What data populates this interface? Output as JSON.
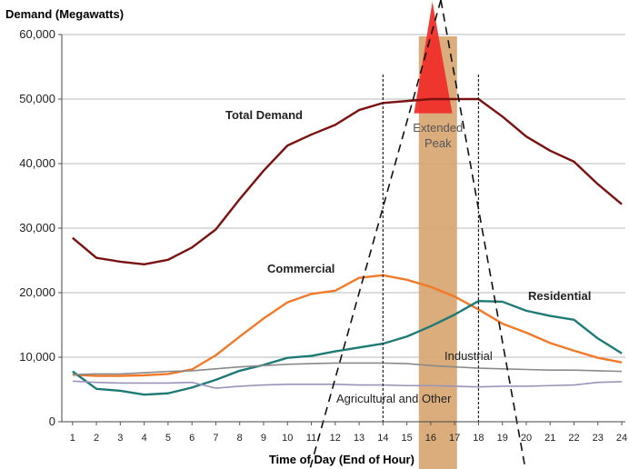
{
  "chart_data": {
    "type": "line",
    "ylabel": "Demand (Megawatts)",
    "xlabel": "Time of Day (End of Hour)",
    "ylim": [
      0,
      60000
    ],
    "yticks": [
      0,
      10000,
      20000,
      30000,
      40000,
      50000,
      60000
    ],
    "ytick_labels": [
      "0",
      "10,000",
      "20,000",
      "30,000",
      "40,000",
      "50,000",
      "60,000"
    ],
    "x": [
      1,
      2,
      3,
      4,
      5,
      6,
      7,
      8,
      9,
      10,
      11,
      12,
      13,
      14,
      15,
      16,
      17,
      18,
      19,
      20,
      21,
      22,
      23,
      24
    ],
    "grid": "horizontal",
    "series": [
      {
        "name": "Total Demand",
        "color": "#7a1212",
        "label_bold": true,
        "values": [
          28500,
          25400,
          24800,
          24400,
          25100,
          27000,
          29800,
          34500,
          38900,
          42800,
          44500,
          46000,
          48300,
          49400,
          49700,
          50000,
          50000,
          50000,
          47300,
          44200,
          42000,
          40300,
          36800,
          33700
        ]
      },
      {
        "name": "Commercial",
        "color": "#f07a2a",
        "label_bold": true,
        "values": [
          7300,
          7100,
          7100,
          7200,
          7400,
          8100,
          10300,
          13200,
          16000,
          18500,
          19800,
          20300,
          22300,
          22700,
          22000,
          20900,
          19400,
          17400,
          15200,
          13800,
          12200,
          11000,
          9900,
          9200
        ]
      },
      {
        "name": "Residential",
        "color": "#1f7a76",
        "label_bold": true,
        "values": [
          7800,
          5100,
          4800,
          4200,
          4400,
          5300,
          6500,
          7900,
          8800,
          9900,
          10200,
          10900,
          11500,
          12100,
          13200,
          14800,
          16600,
          18700,
          18600,
          17200,
          16400,
          15800,
          12900,
          10600
        ]
      },
      {
        "name": "Industrial",
        "color": "#8a8a8a",
        "label_bold": false,
        "values": [
          7300,
          7400,
          7400,
          7600,
          7800,
          7900,
          8200,
          8500,
          8700,
          8900,
          9000,
          9100,
          9100,
          9100,
          9000,
          8700,
          8500,
          8300,
          8200,
          8100,
          8000,
          8000,
          7900,
          7800
        ]
      },
      {
        "name": "Agricultural and Other",
        "color": "#9a94b8",
        "label_bold": false,
        "values": [
          6300,
          6100,
          6000,
          6000,
          6000,
          6100,
          5200,
          5500,
          5700,
          5800,
          5800,
          5800,
          5700,
          5700,
          5600,
          5600,
          5500,
          5400,
          5500,
          5500,
          5600,
          5700,
          6100,
          6200
        ]
      }
    ],
    "annotations": {
      "extended_peak_label": [
        "Extended",
        "Peak"
      ],
      "extended_peak_band": [
        15.5,
        17.1
      ],
      "peak_hours_dotted": [
        14,
        18
      ],
      "band_color": "#d8a46e",
      "triangle_color": "#ee2f2a"
    }
  }
}
